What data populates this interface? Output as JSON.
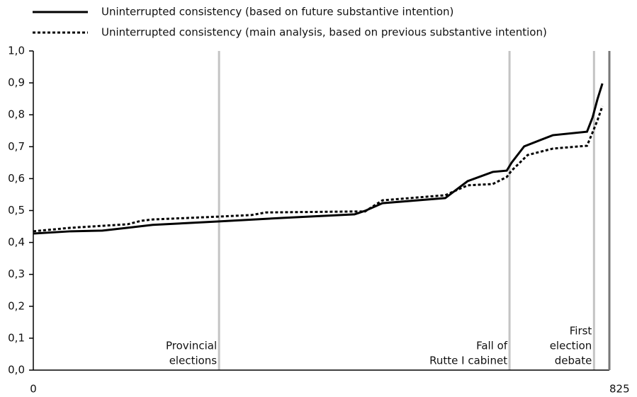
{
  "chart_data": {
    "type": "line",
    "xlim": [
      0,
      825
    ],
    "xticks": [
      0,
      825
    ],
    "ylim": [
      0,
      1.0
    ],
    "yticks": [
      {
        "value": 0,
        "label": "0,0"
      },
      {
        "value": 0.1,
        "label": "0,1"
      },
      {
        "value": 0.2,
        "label": "0,2"
      },
      {
        "value": 0.3,
        "label": "0,3"
      },
      {
        "value": 0.4,
        "label": "0,4"
      },
      {
        "value": 0.5,
        "label": "0,5"
      },
      {
        "value": 0.6,
        "label": "0,6"
      },
      {
        "value": 0.7,
        "label": "0,7"
      },
      {
        "value": 0.8,
        "label": "0,8"
      },
      {
        "value": 0.9,
        "label": "0,9"
      },
      {
        "value": 1.0,
        "label": "1,0"
      }
    ],
    "series": [
      {
        "name": "Uninterrupted consistency (based on future substantive intention)",
        "color": "#000000",
        "dash": "solid",
        "x": [
          0,
          54,
          99,
          135,
          171,
          266,
          358,
          460,
          475,
          500,
          590,
          622,
          658,
          678,
          685,
          703,
          744,
          793,
          801,
          808,
          815
        ],
        "values": [
          0.428,
          0.435,
          0.437,
          0.446,
          0.455,
          0.466,
          0.477,
          0.488,
          0.499,
          0.523,
          0.539,
          0.592,
          0.621,
          0.625,
          0.65,
          0.701,
          0.736,
          0.747,
          0.792,
          0.849,
          0.898
        ]
      },
      {
        "name": "Uninterrupted consistency (main analysis, based on previous substantive intention)",
        "color": "#000000",
        "dash": "dotted",
        "x": [
          0,
          54,
          135,
          155,
          171,
          266,
          313,
          333,
          460,
          475,
          500,
          590,
          622,
          658,
          678,
          685,
          708,
          744,
          793,
          801,
          808,
          815
        ],
        "values": [
          0.435,
          0.446,
          0.457,
          0.468,
          0.472,
          0.481,
          0.486,
          0.494,
          0.497,
          0.497,
          0.532,
          0.548,
          0.579,
          0.583,
          0.605,
          0.625,
          0.674,
          0.694,
          0.703,
          0.745,
          0.783,
          0.827
        ]
      }
    ],
    "events": [
      {
        "x": 266,
        "label_lines": [
          "Provincial",
          "elections"
        ]
      },
      {
        "x": 682,
        "label_lines": [
          "Fall of",
          "Rutte I cabinet"
        ]
      },
      {
        "x": 803,
        "label_lines": [
          "First",
          "election",
          "debate"
        ]
      }
    ]
  }
}
